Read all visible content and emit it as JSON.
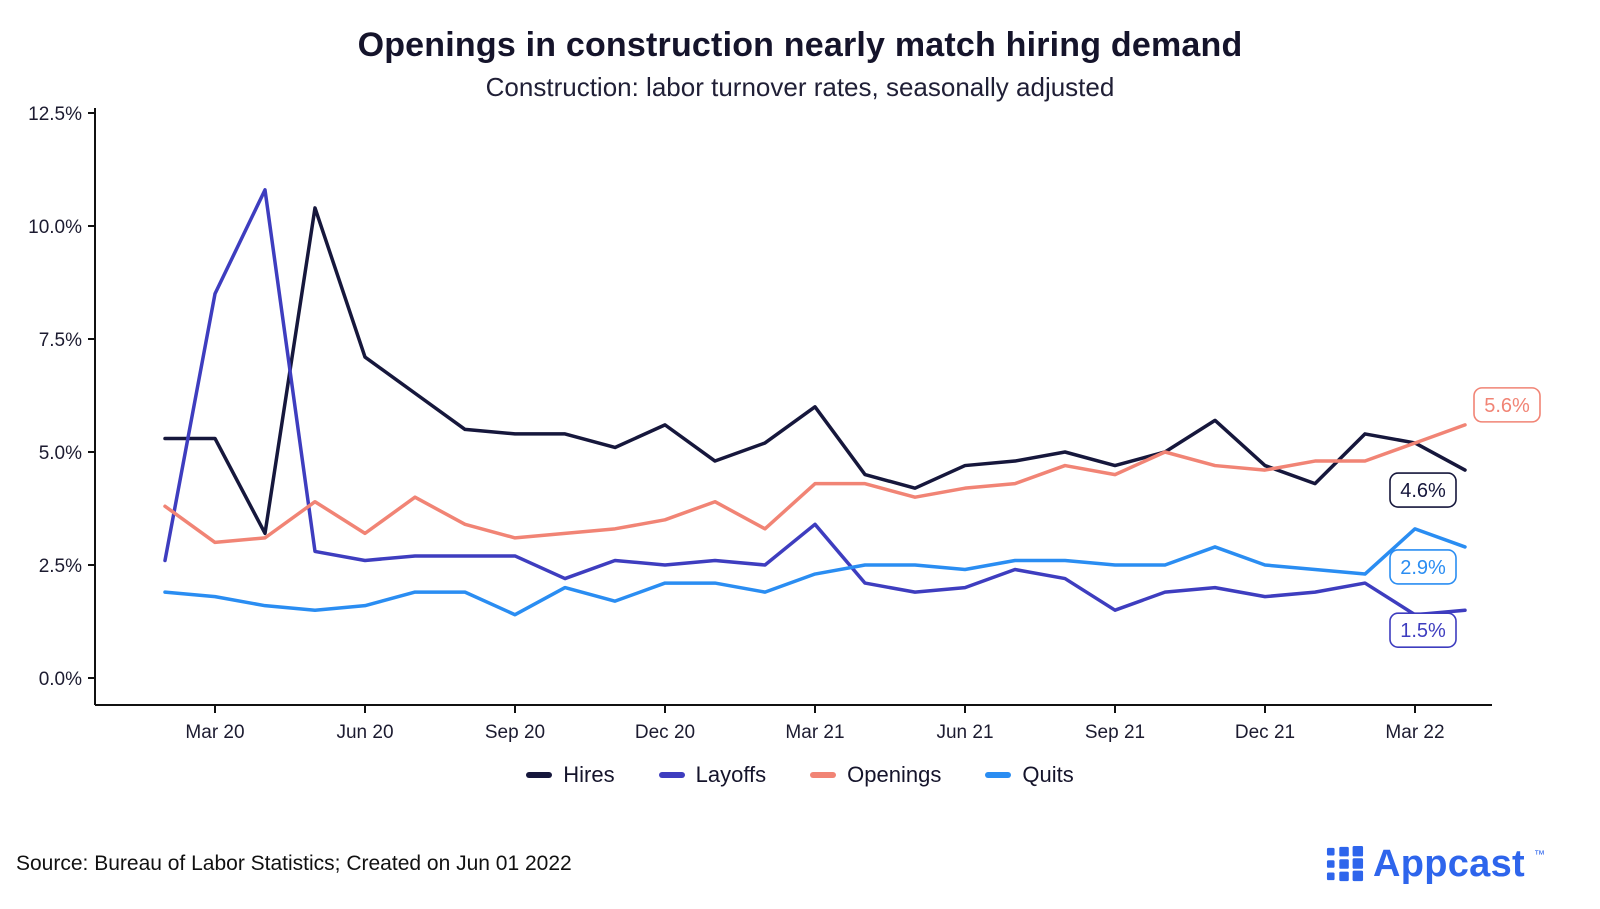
{
  "header": {
    "title": "Openings in construction nearly match hiring demand",
    "subtitle": "Construction: labor turnover rates, seasonally adjusted"
  },
  "footer": {
    "source": "Source: Bureau of Labor Statistics; Created on Jun 01 2022",
    "brand": "Appcast",
    "brand_tm": "™"
  },
  "chart_data": {
    "type": "line",
    "title": "Openings in construction nearly match hiring demand",
    "subtitle": "Construction: labor turnover rates, seasonally adjusted",
    "xlabel": "",
    "ylabel": "",
    "ylim": [
      0,
      12.5
    ],
    "grid": false,
    "legend_position": "bottom",
    "axis_color": "#111111",
    "x": [
      "Feb 20",
      "Mar 20",
      "Apr 20",
      "May 20",
      "Jun 20",
      "Jul 20",
      "Aug 20",
      "Sep 20",
      "Oct 20",
      "Nov 20",
      "Dec 20",
      "Jan 21",
      "Feb 21",
      "Mar 21",
      "Apr 21",
      "May 21",
      "Jun 21",
      "Jul 21",
      "Aug 21",
      "Sep 21",
      "Oct 21",
      "Nov 21",
      "Dec 21",
      "Jan 22",
      "Feb 22",
      "Mar 22",
      "Apr 22"
    ],
    "y_ticks": [
      {
        "label": "0.0%",
        "value": 0
      },
      {
        "label": "2.5%",
        "value": 2.5
      },
      {
        "label": "5.0%",
        "value": 5
      },
      {
        "label": "7.5%",
        "value": 7.5
      },
      {
        "label": "10.0%",
        "value": 10
      },
      {
        "label": "12.5%",
        "value": 12.5
      }
    ],
    "x_ticks": [
      {
        "label": "Mar 20",
        "index": 1
      },
      {
        "label": "Jun 20",
        "index": 4
      },
      {
        "label": "Sep 20",
        "index": 7
      },
      {
        "label": "Dec 20",
        "index": 10
      },
      {
        "label": "Mar 21",
        "index": 13
      },
      {
        "label": "Jun 21",
        "index": 16
      },
      {
        "label": "Sep 21",
        "index": 19
      },
      {
        "label": "Dec 21",
        "index": 22
      },
      {
        "label": "Mar 22",
        "index": 25
      }
    ],
    "series": [
      {
        "name": "Hires",
        "color": "#16173c",
        "values": [
          5.3,
          5.3,
          3.2,
          10.4,
          7.1,
          6.3,
          5.5,
          5.4,
          5.4,
          5.1,
          5.6,
          4.8,
          5.2,
          6.0,
          4.5,
          4.2,
          4.7,
          4.8,
          5.0,
          4.7,
          5.0,
          5.7,
          4.7,
          4.3,
          5.4,
          5.2,
          4.6
        ],
        "end_label": {
          "text": "4.6%",
          "dx": -42,
          "dy": 20
        }
      },
      {
        "name": "Layoffs",
        "color": "#3e3dbf",
        "values": [
          2.6,
          8.5,
          10.8,
          2.8,
          2.6,
          2.7,
          2.7,
          2.7,
          2.2,
          2.6,
          2.5,
          2.6,
          2.5,
          3.4,
          2.1,
          1.9,
          2.0,
          2.4,
          2.2,
          1.5,
          1.9,
          2.0,
          1.8,
          1.9,
          2.1,
          1.4,
          1.5
        ],
        "end_label": {
          "text": "1.5%",
          "dx": -42,
          "dy": 20
        }
      },
      {
        "name": "Openings",
        "color": "#f18475",
        "values": [
          3.8,
          3.0,
          3.1,
          3.9,
          3.2,
          4.0,
          3.4,
          3.1,
          3.2,
          3.3,
          3.5,
          3.9,
          3.3,
          4.3,
          4.3,
          4.0,
          4.2,
          4.3,
          4.7,
          4.5,
          5.0,
          4.7,
          4.6,
          4.8,
          4.8,
          5.2,
          5.6
        ],
        "end_label": {
          "text": "5.6%",
          "dx": 42,
          "dy": -20
        }
      },
      {
        "name": "Quits",
        "color": "#2a8df2",
        "values": [
          1.9,
          1.8,
          1.6,
          1.5,
          1.6,
          1.9,
          1.9,
          1.4,
          2.0,
          1.7,
          2.1,
          2.1,
          1.9,
          2.3,
          2.5,
          2.5,
          2.4,
          2.6,
          2.6,
          2.5,
          2.5,
          2.9,
          2.5,
          2.4,
          2.3,
          3.3,
          2.9
        ],
        "end_label": {
          "text": "2.9%",
          "dx": -42,
          "dy": 20
        }
      }
    ]
  }
}
